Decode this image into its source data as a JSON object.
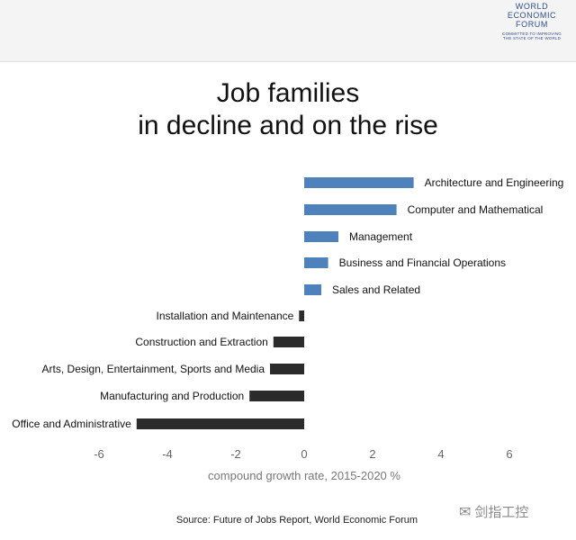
{
  "logo": {
    "lines": [
      "WORLD",
      "ECONOMIC",
      "FORUM"
    ],
    "tagline": "COMMITTED TO IMPROVING THE STATE OF THE WORLD"
  },
  "title_lines": [
    "Job families",
    "in decline and on the rise"
  ],
  "source": "Source: Future of Jobs Report, World Economic Forum",
  "watermark": {
    "text": "剑指工控",
    "icon": "wechat-icon"
  },
  "colors": {
    "positive": "#4f81bd",
    "negative": "#2b2b2b",
    "axis_text": "#666666"
  },
  "chart_data": {
    "type": "bar",
    "orientation": "horizontal",
    "title": "Job families in decline and on the rise",
    "xlabel": "compound growth rate, 2015-2020 %",
    "ylabel": "",
    "xlim": [
      -7,
      7.5
    ],
    "xticks": [
      -6,
      -4,
      -2,
      0,
      2,
      4,
      6
    ],
    "grid": false,
    "legend": "none",
    "categories": [
      "Architecture and Engineering",
      "Computer and Mathematical",
      "Management",
      "Business and Financial Operations",
      "Sales and Related",
      "Installation and Maintenance",
      "Construction and Extraction",
      "Arts, Design, Entertainment, Sports and Media",
      "Manufacturing and Production",
      "Office and Administrative"
    ],
    "values": [
      3.2,
      2.7,
      1.0,
      0.7,
      0.5,
      -0.15,
      -0.9,
      -1.0,
      -1.6,
      -4.9
    ]
  }
}
